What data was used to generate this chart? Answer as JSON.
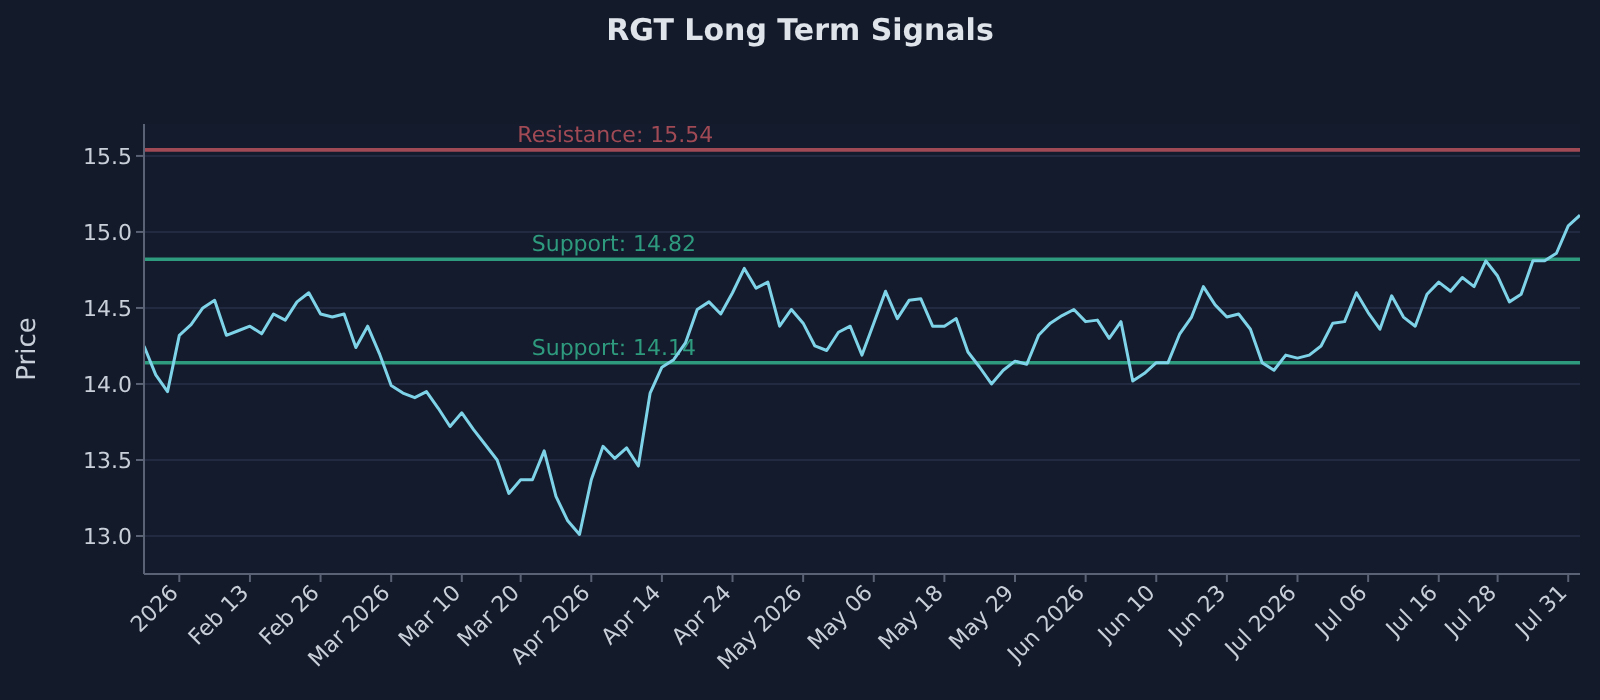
{
  "chart_data": {
    "type": "line",
    "title": "RGT Long Term Signals",
    "ylabel": "Price",
    "categories": [
      null,
      null,
      null,
      "2026",
      null,
      null,
      null,
      null,
      null,
      "Feb 13",
      null,
      null,
      null,
      null,
      null,
      "Feb 26",
      null,
      null,
      null,
      null,
      null,
      "Mar 2026",
      null,
      null,
      null,
      null,
      null,
      "Mar 10",
      null,
      null,
      null,
      null,
      "Mar 20",
      null,
      null,
      null,
      null,
      null,
      "Apr 2026",
      null,
      null,
      null,
      null,
      null,
      "Apr 14",
      null,
      null,
      null,
      null,
      null,
      "Apr 24",
      null,
      null,
      null,
      null,
      null,
      "May 2026",
      null,
      null,
      null,
      null,
      null,
      "May 06",
      null,
      null,
      null,
      null,
      null,
      "May 18",
      null,
      null,
      null,
      null,
      null,
      "May 29",
      null,
      null,
      null,
      null,
      null,
      "Jun 2026",
      null,
      null,
      null,
      null,
      null,
      "Jun 10",
      null,
      null,
      null,
      null,
      null,
      "Jun 23",
      null,
      null,
      null,
      null,
      null,
      "Jul 2026",
      null,
      null,
      null,
      null,
      null,
      "Jul 06",
      null,
      null,
      null,
      null,
      null,
      "Jul 16",
      null,
      null,
      null,
      null,
      "Jul 28",
      null,
      null,
      null,
      null,
      null,
      "Jul 31",
      null
    ],
    "series": [
      {
        "color": "#7fd3e8",
        "values": [
          14.25,
          14.06,
          13.95,
          14.32,
          14.39,
          14.5,
          14.55,
          14.32,
          14.35,
          14.38,
          14.33,
          14.46,
          14.42,
          14.54,
          14.6,
          14.46,
          14.44,
          14.46,
          14.24,
          14.38,
          14.2,
          13.99,
          13.94,
          13.91,
          13.95,
          13.84,
          13.72,
          13.81,
          13.7,
          13.6,
          13.5,
          13.28,
          13.37,
          13.37,
          13.56,
          13.26,
          13.1,
          13.01,
          13.37,
          13.59,
          13.51,
          13.58,
          13.46,
          13.94,
          14.11,
          14.16,
          14.27,
          14.49,
          14.54,
          14.46,
          14.6,
          14.76,
          14.63,
          14.67,
          14.38,
          14.49,
          14.4,
          14.25,
          14.22,
          14.34,
          14.38,
          14.19,
          14.4,
          14.61,
          14.43,
          14.55,
          14.56,
          14.38,
          14.38,
          14.43,
          14.21,
          14.11,
          14.0,
          14.09,
          14.15,
          14.13,
          14.32,
          14.4,
          14.45,
          14.49,
          14.41,
          14.42,
          14.3,
          14.41,
          14.02,
          14.07,
          14.14,
          14.14,
          14.33,
          14.44,
          14.64,
          14.52,
          14.44,
          14.46,
          14.36,
          14.14,
          14.09,
          14.19,
          14.17,
          14.19,
          14.25,
          14.4,
          14.41,
          14.6,
          14.47,
          14.36,
          14.58,
          14.44,
          14.38,
          14.59,
          14.67,
          14.61,
          14.7,
          14.64,
          14.81,
          14.71,
          14.54,
          14.59,
          14.81,
          14.81,
          14.86,
          15.04,
          15.11
        ]
      }
    ],
    "ylim": [
      12.75,
      15.71
    ],
    "yticks": [
      {
        "value": 13,
        "label": "13.0"
      },
      {
        "value": 13.5,
        "label": "13.5"
      },
      {
        "value": 14,
        "label": "14.0"
      },
      {
        "value": 14.5,
        "label": "14.5"
      },
      {
        "value": 15,
        "label": "15.0"
      },
      {
        "value": 15.5,
        "label": "15.5"
      }
    ],
    "grid": "y",
    "legend": false,
    "marker": "none",
    "line_style": "solid",
    "ref_lines": [
      {
        "axis": "y",
        "value": 15.54,
        "label": "Resistance: 15.54",
        "color": "#a04a55"
      },
      {
        "axis": "y",
        "value": 14.82,
        "label": "Support: 14.82",
        "color": "#2e9a7e"
      },
      {
        "axis": "y",
        "value": 14.14,
        "label": "Support: 14.14",
        "color": "#2e9a7e"
      }
    ]
  }
}
